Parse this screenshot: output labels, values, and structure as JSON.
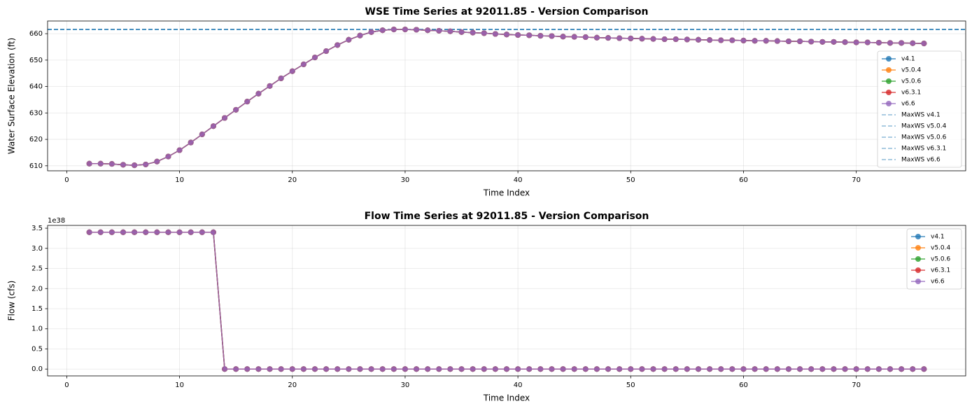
{
  "chart_data": [
    {
      "type": "line",
      "title": "WSE Time Series at 92011.85 - Version Comparison",
      "xlabel": "Time Index",
      "ylabel": "Water Surface Elevation (ft)",
      "x": [
        2,
        3,
        4,
        5,
        6,
        7,
        8,
        9,
        10,
        11,
        12,
        13,
        14,
        15,
        16,
        17,
        18,
        19,
        20,
        21,
        22,
        23,
        24,
        25,
        26,
        27,
        28,
        29,
        30,
        31,
        32,
        33,
        34,
        35,
        36,
        37,
        38,
        39,
        40,
        41,
        42,
        43,
        44,
        45,
        46,
        47,
        48,
        49,
        50,
        51,
        52,
        53,
        54,
        55,
        56,
        57,
        58,
        59,
        60,
        61,
        62,
        63,
        64,
        65,
        66,
        67,
        68,
        69,
        70,
        71,
        72,
        73,
        74,
        75,
        76
      ],
      "series": [
        {
          "name": "v4.1",
          "color": "#1f77b4",
          "values": [
            610.8,
            610.8,
            610.7,
            610.4,
            610.2,
            610.5,
            611.6,
            613.5,
            615.9,
            618.8,
            621.9,
            625.0,
            628.1,
            631.2,
            634.3,
            637.3,
            640.2,
            643.1,
            645.8,
            648.4,
            651.0,
            653.4,
            655.7,
            657.7,
            659.3,
            660.6,
            661.3,
            661.6,
            661.6,
            661.5,
            661.3,
            661.1,
            660.9,
            660.6,
            660.4,
            660.2,
            659.9,
            659.7,
            659.5,
            659.4,
            659.2,
            659.1,
            658.9,
            658.8,
            658.7,
            658.5,
            658.4,
            658.3,
            658.2,
            658.1,
            658.0,
            657.9,
            657.9,
            657.8,
            657.7,
            657.6,
            657.5,
            657.5,
            657.4,
            657.3,
            657.3,
            657.2,
            657.1,
            657.1,
            657.0,
            656.9,
            656.9,
            656.8,
            656.7,
            656.7,
            656.6,
            656.5,
            656.5,
            656.4,
            656.3
          ]
        },
        {
          "name": "v5.0.4",
          "color": "#ff7f0e",
          "values": [
            610.8,
            610.8,
            610.7,
            610.4,
            610.2,
            610.5,
            611.6,
            613.5,
            615.9,
            618.8,
            621.9,
            625.0,
            628.1,
            631.2,
            634.3,
            637.3,
            640.2,
            643.1,
            645.8,
            648.4,
            651.0,
            653.4,
            655.7,
            657.7,
            659.3,
            660.6,
            661.3,
            661.6,
            661.6,
            661.5,
            661.3,
            661.1,
            660.9,
            660.6,
            660.4,
            660.2,
            659.9,
            659.7,
            659.5,
            659.4,
            659.2,
            659.1,
            658.9,
            658.8,
            658.7,
            658.5,
            658.4,
            658.3,
            658.2,
            658.1,
            658.0,
            657.9,
            657.9,
            657.8,
            657.7,
            657.6,
            657.5,
            657.5,
            657.4,
            657.3,
            657.3,
            657.2,
            657.1,
            657.1,
            657.0,
            656.9,
            656.9,
            656.8,
            656.7,
            656.7,
            656.6,
            656.5,
            656.5,
            656.4,
            656.3
          ]
        },
        {
          "name": "v5.0.6",
          "color": "#2ca02c",
          "values": [
            610.8,
            610.8,
            610.7,
            610.4,
            610.2,
            610.5,
            611.6,
            613.5,
            615.9,
            618.8,
            621.9,
            625.0,
            628.1,
            631.2,
            634.3,
            637.3,
            640.2,
            643.1,
            645.8,
            648.4,
            651.0,
            653.4,
            655.7,
            657.7,
            659.3,
            660.6,
            661.3,
            661.6,
            661.6,
            661.5,
            661.3,
            661.1,
            660.9,
            660.6,
            660.4,
            660.2,
            659.9,
            659.7,
            659.5,
            659.4,
            659.2,
            659.1,
            658.9,
            658.8,
            658.7,
            658.5,
            658.4,
            658.3,
            658.2,
            658.1,
            658.0,
            657.9,
            657.9,
            657.8,
            657.7,
            657.6,
            657.5,
            657.5,
            657.4,
            657.3,
            657.3,
            657.2,
            657.1,
            657.1,
            657.0,
            656.9,
            656.9,
            656.8,
            656.7,
            656.7,
            656.6,
            656.5,
            656.5,
            656.4,
            656.3
          ]
        },
        {
          "name": "v6.3.1",
          "color": "#d62728",
          "values": [
            610.8,
            610.8,
            610.7,
            610.4,
            610.2,
            610.5,
            611.6,
            613.5,
            615.9,
            618.8,
            621.9,
            625.0,
            628.1,
            631.2,
            634.3,
            637.3,
            640.2,
            643.1,
            645.8,
            648.4,
            651.0,
            653.4,
            655.7,
            657.7,
            659.3,
            660.6,
            661.3,
            661.6,
            661.6,
            661.5,
            661.3,
            661.1,
            660.9,
            660.6,
            660.4,
            660.2,
            659.9,
            659.7,
            659.5,
            659.4,
            659.2,
            659.1,
            658.9,
            658.8,
            658.7,
            658.5,
            658.4,
            658.3,
            658.2,
            658.1,
            658.0,
            657.9,
            657.9,
            657.8,
            657.7,
            657.6,
            657.5,
            657.5,
            657.4,
            657.3,
            657.3,
            657.2,
            657.1,
            657.1,
            657.0,
            656.9,
            656.9,
            656.8,
            656.7,
            656.7,
            656.6,
            656.5,
            656.5,
            656.4,
            656.3
          ]
        },
        {
          "name": "v6.6",
          "color": "#9467bd",
          "values": [
            610.8,
            610.8,
            610.7,
            610.4,
            610.2,
            610.5,
            611.6,
            613.5,
            615.9,
            618.8,
            621.9,
            625.0,
            628.1,
            631.2,
            634.3,
            637.3,
            640.2,
            643.1,
            645.8,
            648.4,
            651.0,
            653.4,
            655.7,
            657.7,
            659.3,
            660.6,
            661.3,
            661.6,
            661.6,
            661.5,
            661.3,
            661.1,
            660.9,
            660.6,
            660.4,
            660.2,
            659.9,
            659.7,
            659.5,
            659.4,
            659.2,
            659.1,
            658.9,
            658.8,
            658.7,
            658.5,
            658.4,
            658.3,
            658.2,
            658.1,
            658.0,
            657.9,
            657.9,
            657.8,
            657.7,
            657.6,
            657.5,
            657.5,
            657.4,
            657.3,
            657.3,
            657.2,
            657.1,
            657.1,
            657.0,
            656.9,
            656.9,
            656.8,
            656.7,
            656.7,
            656.6,
            656.5,
            656.5,
            656.4,
            656.3
          ]
        }
      ],
      "hlines": [
        {
          "name": "MaxWS v4.1",
          "color": "#1f77b4",
          "value": 661.6
        },
        {
          "name": "MaxWS v5.0.4",
          "color": "#1f77b4",
          "value": 661.6
        },
        {
          "name": "MaxWS v5.0.6",
          "color": "#1f77b4",
          "value": 661.6
        },
        {
          "name": "MaxWS v6.3.1",
          "color": "#1f77b4",
          "value": 661.6
        },
        {
          "name": "MaxWS v6.6",
          "color": "#1f77b4",
          "value": 661.6
        }
      ],
      "xlim": [
        -1.7,
        79.7
      ],
      "xticks": [
        0,
        10,
        20,
        30,
        40,
        50,
        60,
        70
      ],
      "ylim": [
        608.1,
        664.8
      ],
      "yticks": [
        610,
        620,
        630,
        640,
        650,
        660
      ],
      "grid": true,
      "legend": "lower right"
    },
    {
      "type": "line",
      "title": "Flow Time Series at 92011.85 - Version Comparison",
      "xlabel": "Time Index",
      "ylabel": "Flow (cfs)",
      "y_offset_label": "1e38",
      "x": [
        2,
        3,
        4,
        5,
        6,
        7,
        8,
        9,
        10,
        11,
        12,
        13,
        14,
        15,
        16,
        17,
        18,
        19,
        20,
        21,
        22,
        23,
        24,
        25,
        26,
        27,
        28,
        29,
        30,
        31,
        32,
        33,
        34,
        35,
        36,
        37,
        38,
        39,
        40,
        41,
        42,
        43,
        44,
        45,
        46,
        47,
        48,
        49,
        50,
        51,
        52,
        53,
        54,
        55,
        56,
        57,
        58,
        59,
        60,
        61,
        62,
        63,
        64,
        65,
        66,
        67,
        68,
        69,
        70,
        71,
        72,
        73,
        74,
        75,
        76
      ],
      "series": [
        {
          "name": "v4.1",
          "color": "#1f77b4",
          "values": [
            3.4e+38,
            3.4e+38,
            3.4e+38,
            3.4e+38,
            3.4e+38,
            3.4e+38,
            3.4e+38,
            3.4e+38,
            3.4e+38,
            3.4e+38,
            3.4e+38,
            3.4e+38,
            0,
            0,
            0,
            0,
            0,
            0,
            0,
            0,
            0,
            0,
            0,
            0,
            0,
            0,
            0,
            0,
            0,
            0,
            0,
            0,
            0,
            0,
            0,
            0,
            0,
            0,
            0,
            0,
            0,
            0,
            0,
            0,
            0,
            0,
            0,
            0,
            0,
            0,
            0,
            0,
            0,
            0,
            0,
            0,
            0,
            0,
            0,
            0,
            0,
            0,
            0,
            0,
            0,
            0,
            0,
            0,
            0,
            0,
            0,
            0,
            0,
            0,
            0
          ]
        },
        {
          "name": "v5.0.4",
          "color": "#ff7f0e",
          "values": [
            3.4e+38,
            3.4e+38,
            3.4e+38,
            3.4e+38,
            3.4e+38,
            3.4e+38,
            3.4e+38,
            3.4e+38,
            3.4e+38,
            3.4e+38,
            3.4e+38,
            3.4e+38,
            0,
            0,
            0,
            0,
            0,
            0,
            0,
            0,
            0,
            0,
            0,
            0,
            0,
            0,
            0,
            0,
            0,
            0,
            0,
            0,
            0,
            0,
            0,
            0,
            0,
            0,
            0,
            0,
            0,
            0,
            0,
            0,
            0,
            0,
            0,
            0,
            0,
            0,
            0,
            0,
            0,
            0,
            0,
            0,
            0,
            0,
            0,
            0,
            0,
            0,
            0,
            0,
            0,
            0,
            0,
            0,
            0,
            0,
            0,
            0,
            0,
            0,
            0
          ]
        },
        {
          "name": "v5.0.6",
          "color": "#2ca02c",
          "values": [
            3.4e+38,
            3.4e+38,
            3.4e+38,
            3.4e+38,
            3.4e+38,
            3.4e+38,
            3.4e+38,
            3.4e+38,
            3.4e+38,
            3.4e+38,
            3.4e+38,
            3.4e+38,
            0,
            0,
            0,
            0,
            0,
            0,
            0,
            0,
            0,
            0,
            0,
            0,
            0,
            0,
            0,
            0,
            0,
            0,
            0,
            0,
            0,
            0,
            0,
            0,
            0,
            0,
            0,
            0,
            0,
            0,
            0,
            0,
            0,
            0,
            0,
            0,
            0,
            0,
            0,
            0,
            0,
            0,
            0,
            0,
            0,
            0,
            0,
            0,
            0,
            0,
            0,
            0,
            0,
            0,
            0,
            0,
            0,
            0,
            0,
            0,
            0,
            0,
            0
          ]
        },
        {
          "name": "v6.3.1",
          "color": "#d62728",
          "values": [
            3.4e+38,
            3.4e+38,
            3.4e+38,
            3.4e+38,
            3.4e+38,
            3.4e+38,
            3.4e+38,
            3.4e+38,
            3.4e+38,
            3.4e+38,
            3.4e+38,
            3.4e+38,
            0,
            0,
            0,
            0,
            0,
            0,
            0,
            0,
            0,
            0,
            0,
            0,
            0,
            0,
            0,
            0,
            0,
            0,
            0,
            0,
            0,
            0,
            0,
            0,
            0,
            0,
            0,
            0,
            0,
            0,
            0,
            0,
            0,
            0,
            0,
            0,
            0,
            0,
            0,
            0,
            0,
            0,
            0,
            0,
            0,
            0,
            0,
            0,
            0,
            0,
            0,
            0,
            0,
            0,
            0,
            0,
            0,
            0,
            0,
            0,
            0,
            0,
            0
          ]
        },
        {
          "name": "v6.6",
          "color": "#9467bd",
          "values": [
            3.4e+38,
            3.4e+38,
            3.4e+38,
            3.4e+38,
            3.4e+38,
            3.4e+38,
            3.4e+38,
            3.4e+38,
            3.4e+38,
            3.4e+38,
            3.4e+38,
            3.4e+38,
            0,
            0,
            0,
            0,
            0,
            0,
            0,
            0,
            0,
            0,
            0,
            0,
            0,
            0,
            0,
            0,
            0,
            0,
            0,
            0,
            0,
            0,
            0,
            0,
            0,
            0,
            0,
            0,
            0,
            0,
            0,
            0,
            0,
            0,
            0,
            0,
            0,
            0,
            0,
            0,
            0,
            0,
            0,
            0,
            0,
            0,
            0,
            0,
            0,
            0,
            0,
            0,
            0,
            0,
            0,
            0,
            0,
            0,
            0,
            0,
            0,
            0,
            0
          ]
        }
      ],
      "xlim": [
        -1.7,
        79.7
      ],
      "xticks": [
        0,
        10,
        20,
        30,
        40,
        50,
        60,
        70
      ],
      "ylim": [
        -1.7e+37,
        3.57e+38
      ],
      "yticks": [
        {
          "value": 0,
          "label": "0.0"
        },
        {
          "value": 5e+37,
          "label": "0.5"
        },
        {
          "value": 1e+38,
          "label": "1.0"
        },
        {
          "value": 1.5e+38,
          "label": "1.5"
        },
        {
          "value": 2e+38,
          "label": "2.0"
        },
        {
          "value": 2.5e+38,
          "label": "2.5"
        },
        {
          "value": 3e+38,
          "label": "3.0"
        },
        {
          "value": 3.5e+38,
          "label": "3.5"
        }
      ],
      "grid": true,
      "legend": "upper right"
    }
  ]
}
